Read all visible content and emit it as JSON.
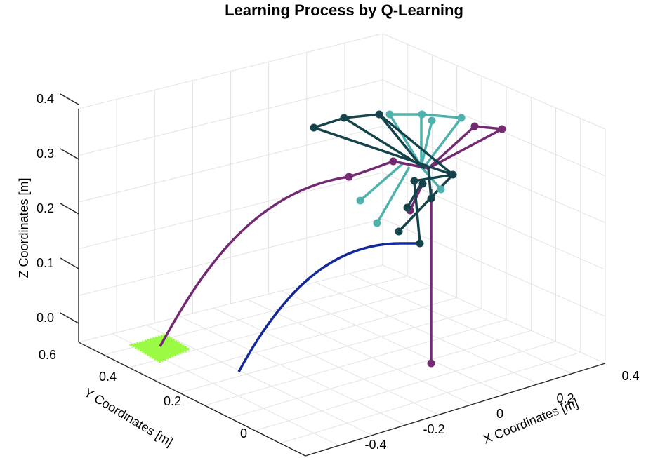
{
  "chart_data": {
    "type": "line3d",
    "title": "Learning Process by Q-Learning",
    "xlabel": "X Coordinates [m]",
    "ylabel": "Y Coordinates [m]",
    "zlabel": "Z Coordinates [m]",
    "xlim": [
      -0.5,
      0.4
    ],
    "ylim": [
      -0.1,
      0.6
    ],
    "zlim": [
      -0.05,
      0.4
    ],
    "xticks": [
      "-0.4",
      "-0.2",
      "0",
      "0.2",
      "0.4"
    ],
    "yticks": [
      "0",
      "0.2",
      "0.4",
      "0.6"
    ],
    "zticks": [
      "0.0",
      "0.1",
      "0.2",
      "0.3",
      "0.4"
    ],
    "grid": true,
    "colors": {
      "purple": "#742a73",
      "blue": "#13289a",
      "dark_teal": "#14434b",
      "light_teal": "#4fb1ac",
      "target": "#9bfa43"
    }
  }
}
